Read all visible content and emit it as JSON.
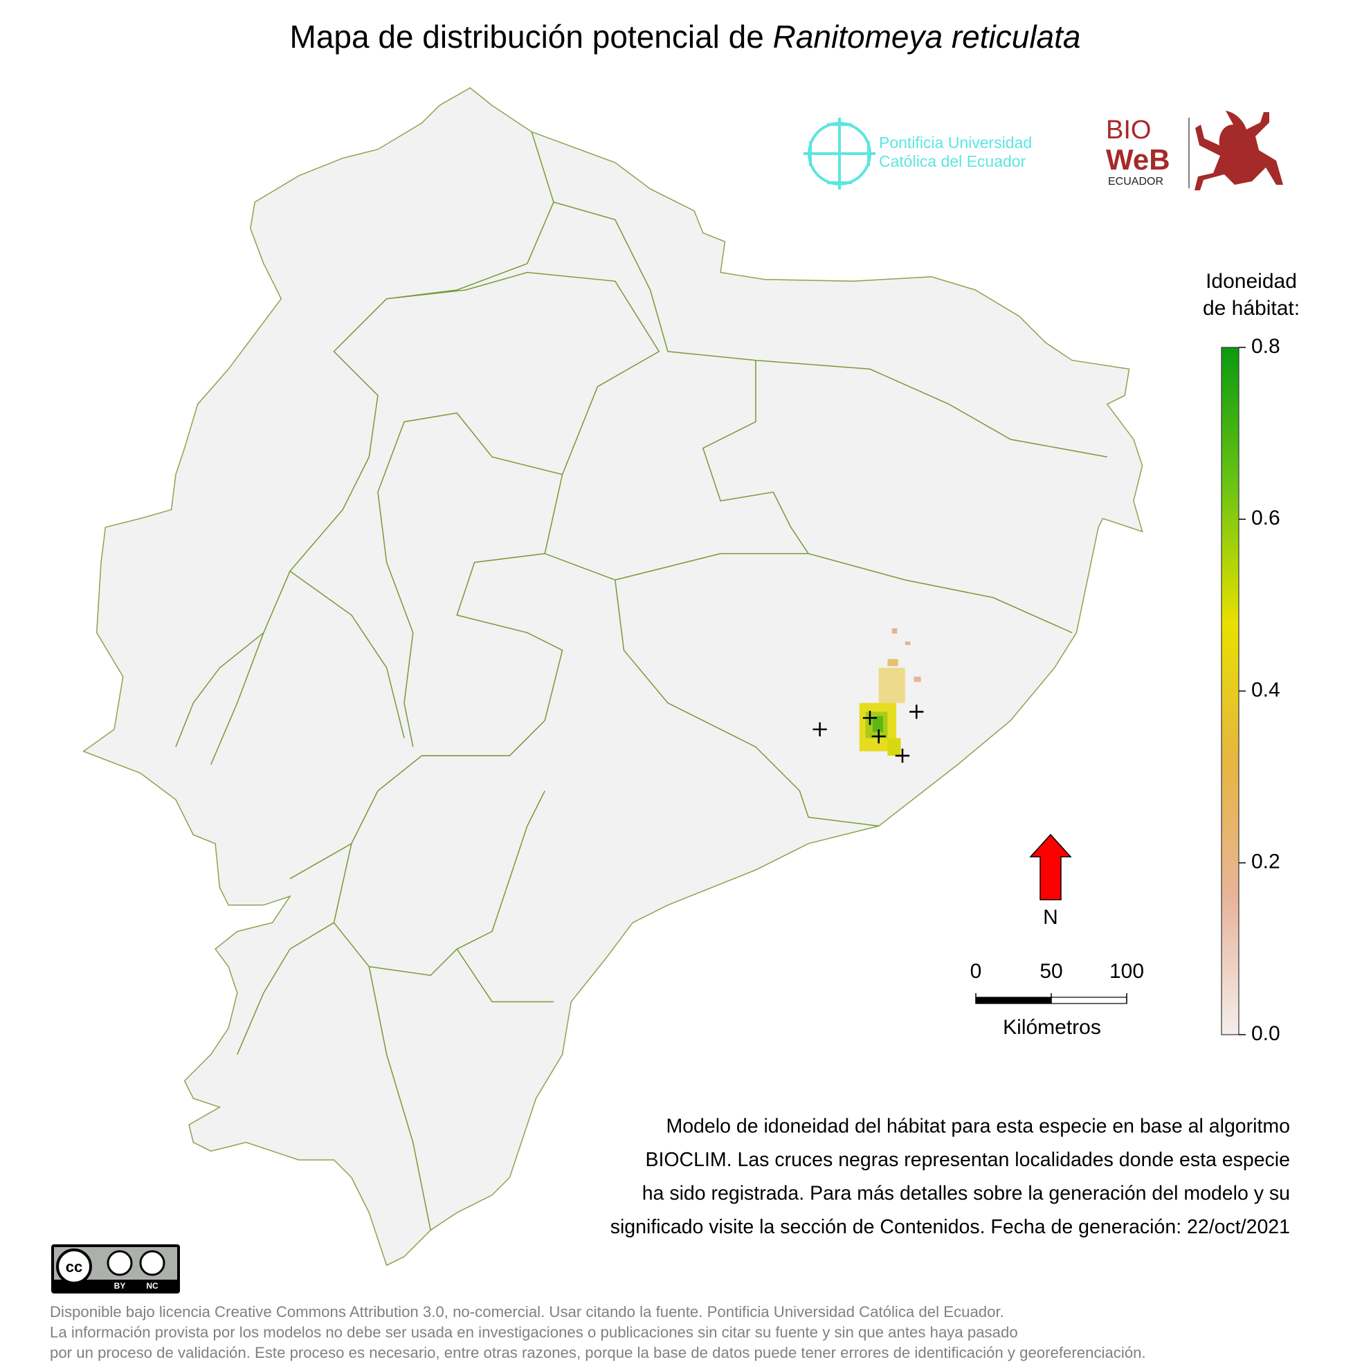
{
  "title": "Mapa de distribución potencial de ",
  "title_species": "Ranitomeya reticulata",
  "logos": {
    "puce_line1": "Pontificia Universidad",
    "puce_line2": "Católica del Ecuador",
    "bioweb_line1": "BIO",
    "bioweb_line2": "WeB",
    "bioweb_line3": "ECUADOR"
  },
  "legend": {
    "title_line1": "Idoneidad",
    "title_line2": "de hábitat:",
    "lim": [
      0,
      0.8
    ],
    "ticks": [
      {
        "value": 0,
        "label": "0.0"
      },
      0.2,
      0.4,
      0.6,
      0.8
    ],
    "colors": [
      "#f4eeec",
      "#e8b49a",
      "#e6b640",
      "#e8e000",
      "#6cc414",
      "#0a9a10"
    ]
  },
  "north": "N",
  "scale_bar": {
    "ticks": [
      0,
      50,
      100
    ],
    "unit": "Kilómetros"
  },
  "description": [
    "Modelo de idoneidad del hábitat para esta especie en base al algoritmo",
    "BIOCLIM. Las cruces negras representan localidades donde esta especie",
    "ha sido registrada. Para más detalles sobre la generación del modelo y su",
    "significado visite la sección de Contenidos. Fecha de generación: 22/oct/2021"
  ],
  "license": {
    "by": "BY",
    "nc": "NC"
  },
  "footer": [
    "Disponible bajo licencia Creative Commons Attribution 3.0, no-comercial. Usar citando la fuente. Pontificia Universidad Católica del Ecuador.",
    "La información provista por los modelos no debe ser usada en investigaciones o publicaciones sin citar su fuente y sin que antes haya pasado",
    "por un proceso de validación. Este proceso es necesario, entre otras razones, porque la base de datos puede tener errores de identificación y georeferenciación."
  ]
}
